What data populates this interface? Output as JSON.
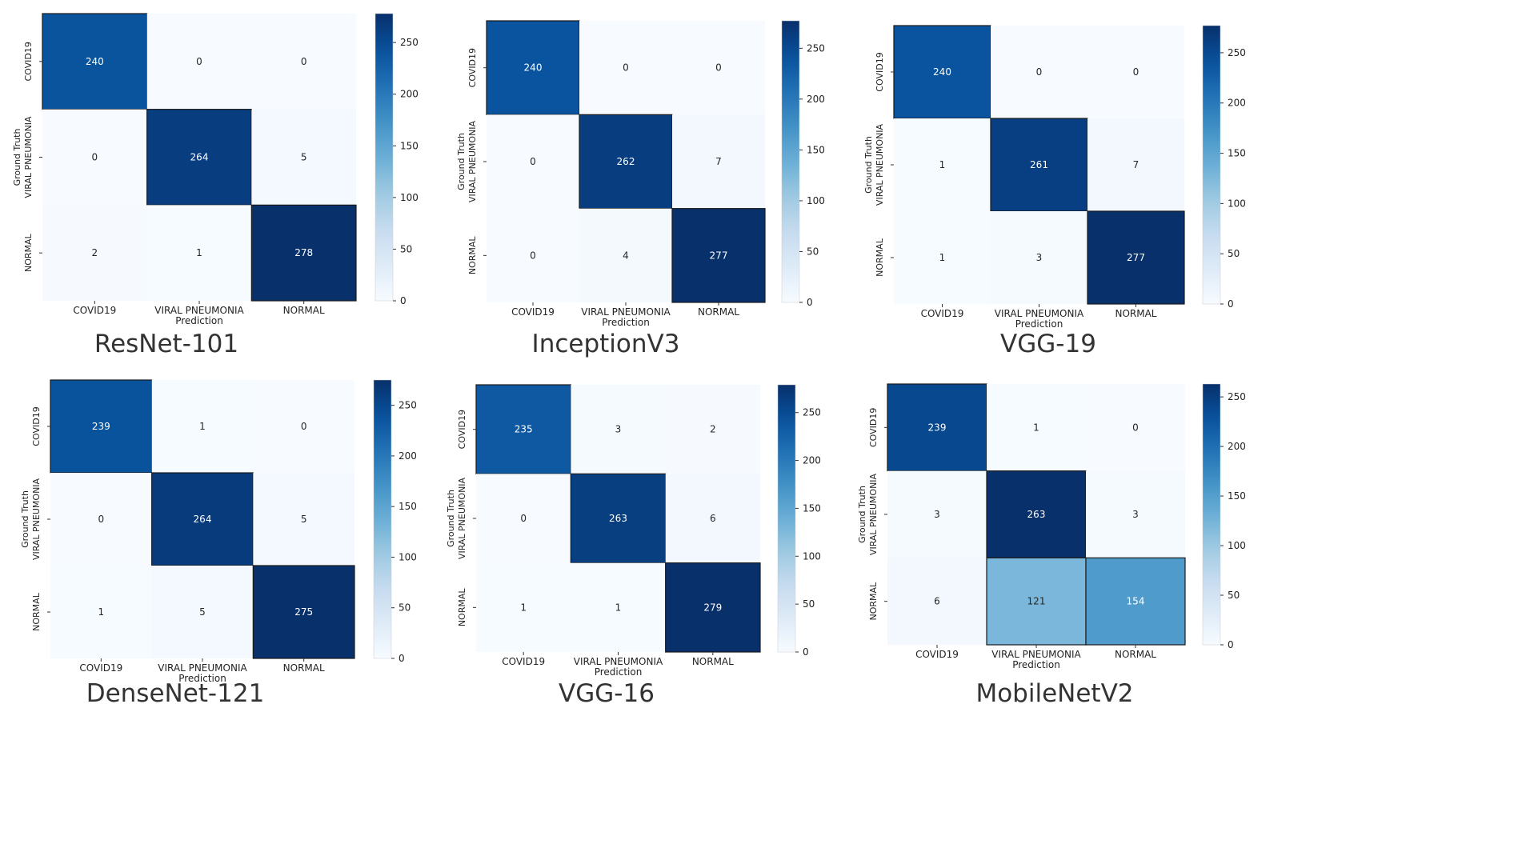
{
  "chart_data": [
    {
      "type": "heatmap",
      "title": "ResNet-101",
      "xlabel": "Prediction",
      "ylabel": "Ground Truth",
      "x_categories": [
        "COVID19",
        "VIRAL PNEUMONIA",
        "NORMAL"
      ],
      "y_categories": [
        "COVID19",
        "VIRAL PNEUMONIA",
        "NORMAL"
      ],
      "values": [
        [
          240,
          0,
          0
        ],
        [
          0,
          264,
          5
        ],
        [
          2,
          1,
          278
        ]
      ],
      "colorbar": {
        "min": 0,
        "max": 278,
        "ticks": [
          0,
          50,
          100,
          150,
          200,
          250
        ]
      }
    },
    {
      "type": "heatmap",
      "title": "InceptionV3",
      "xlabel": "Prediction",
      "ylabel": "Ground Truth",
      "x_categories": [
        "COVID19",
        "VIRAL PNEUMONIA",
        "NORMAL"
      ],
      "y_categories": [
        "COVID19",
        "VIRAL PNEUMONIA",
        "NORMAL"
      ],
      "values": [
        [
          240,
          0,
          0
        ],
        [
          0,
          262,
          7
        ],
        [
          0,
          4,
          277
        ]
      ],
      "colorbar": {
        "min": 0,
        "max": 277,
        "ticks": [
          0,
          50,
          100,
          150,
          200,
          250
        ]
      }
    },
    {
      "type": "heatmap",
      "title": "VGG-19",
      "xlabel": "Prediction",
      "ylabel": "Ground Truth",
      "x_categories": [
        "COVID19",
        "VIRAL PNEUMONIA",
        "NORMAL"
      ],
      "y_categories": [
        "COVID19",
        "VIRAL PNEUMONIA",
        "NORMAL"
      ],
      "values": [
        [
          240,
          0,
          0
        ],
        [
          1,
          261,
          7
        ],
        [
          1,
          3,
          277
        ]
      ],
      "colorbar": {
        "min": 0,
        "max": 277,
        "ticks": [
          0,
          50,
          100,
          150,
          200,
          250
        ]
      }
    },
    {
      "type": "heatmap",
      "title": "DenseNet-121",
      "xlabel": "Prediction",
      "ylabel": "Ground Truth",
      "x_categories": [
        "COVID19",
        "VIRAL PNEUMONIA",
        "NORMAL"
      ],
      "y_categories": [
        "COVID19",
        "VIRAL PNEUMONIA",
        "NORMAL"
      ],
      "values": [
        [
          239,
          1,
          0
        ],
        [
          0,
          264,
          5
        ],
        [
          1,
          5,
          275
        ]
      ],
      "colorbar": {
        "min": 0,
        "max": 275,
        "ticks": [
          0,
          50,
          100,
          150,
          200,
          250
        ]
      }
    },
    {
      "type": "heatmap",
      "title": "VGG-16",
      "xlabel": "Prediction",
      "ylabel": "Ground Truth",
      "x_categories": [
        "COVID19",
        "VIRAL PNEUMONIA",
        "NORMAL"
      ],
      "y_categories": [
        "COVID19",
        "VIRAL PNEUMONIA",
        "NORMAL"
      ],
      "values": [
        [
          235,
          3,
          2
        ],
        [
          0,
          263,
          6
        ],
        [
          1,
          1,
          279
        ]
      ],
      "colorbar": {
        "min": 0,
        "max": 279,
        "ticks": [
          0,
          50,
          100,
          150,
          200,
          250
        ]
      }
    },
    {
      "type": "heatmap",
      "title": "MobileNetV2",
      "xlabel": "Prediction",
      "ylabel": "Ground Truth",
      "x_categories": [
        "COVID19",
        "VIRAL PNEUMONIA",
        "NORMAL"
      ],
      "y_categories": [
        "COVID19",
        "VIRAL PNEUMONIA",
        "NORMAL"
      ],
      "values": [
        [
          239,
          1,
          0
        ],
        [
          3,
          263,
          3
        ],
        [
          6,
          121,
          154
        ]
      ],
      "colorbar": {
        "min": 0,
        "max": 263,
        "ticks": [
          0,
          50,
          100,
          150,
          200,
          250
        ]
      }
    }
  ],
  "colors": {
    "colormap": [
      "#f7fbff",
      "#deebf7",
      "#c6dbef",
      "#9ecae1",
      "#6baed6",
      "#4292c6",
      "#2171b5",
      "#08519c",
      "#08306b"
    ],
    "text_dark": "#262626",
    "text_light": "#ffffff",
    "title": "#333333"
  }
}
